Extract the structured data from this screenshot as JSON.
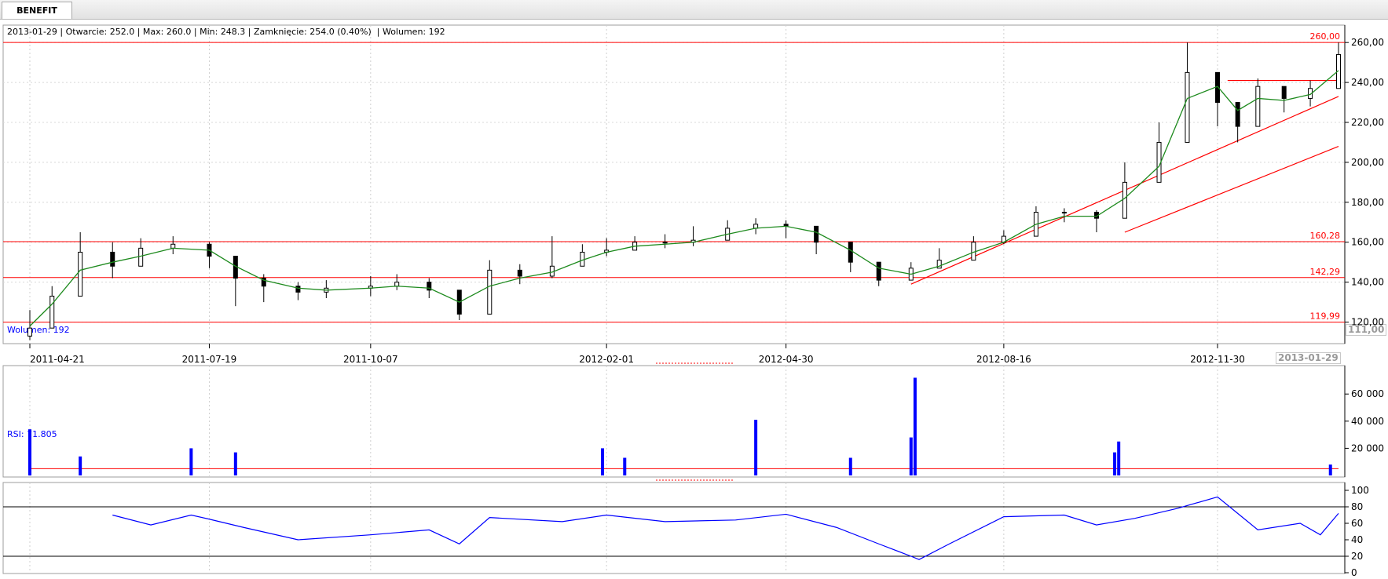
{
  "tab": {
    "label": "BENEFIT"
  },
  "ohlc": {
    "date": "2013-01-29",
    "open_label": "Otwarcie",
    "open": "252.0",
    "max_label": "Max",
    "max": "260.0",
    "min_label": "Min",
    "min": "248.3",
    "close_label": "Zamknięcie",
    "close": "254.0 (0.40%)",
    "volume_label": "Wolumen",
    "volume": "192"
  },
  "volume_pane": {
    "label": "Wolumen: 192"
  },
  "rsi_pane": {
    "label": "RSI: 71.805"
  },
  "price_axis": {
    "last_badge": "111,00"
  },
  "time_axis": {
    "last_badge": "2013-01-29"
  },
  "colors": {
    "candle": "#000000",
    "ma": "#1d8a1d",
    "hline": "#ff0000",
    "volume": "#0000ff",
    "vol_ma": "#ff0000",
    "rsi": "#0000ff"
  },
  "chart_data": [
    {
      "type": "candlestick",
      "title": "BENEFIT",
      "x": [
        "2011-04-21",
        "2011-05-02",
        "2011-05-16",
        "2011-06-01",
        "2011-06-15",
        "2011-07-01",
        "2011-07-19",
        "2011-08-01",
        "2011-08-15",
        "2011-09-01",
        "2011-09-15",
        "2011-10-07",
        "2011-10-20",
        "2011-11-05",
        "2011-11-20",
        "2011-12-05",
        "2011-12-20",
        "2012-01-05",
        "2012-01-20",
        "2012-02-01",
        "2012-02-15",
        "2012-03-01",
        "2012-03-15",
        "2012-04-01",
        "2012-04-15",
        "2012-04-30",
        "2012-05-15",
        "2012-06-01",
        "2012-06-15",
        "2012-07-01",
        "2012-07-15",
        "2012-08-01",
        "2012-08-16",
        "2012-09-01",
        "2012-09-15",
        "2012-10-01",
        "2012-10-15",
        "2012-11-01",
        "2012-11-15",
        "2012-11-30",
        "2012-12-10",
        "2012-12-20",
        "2013-01-02",
        "2013-01-15",
        "2013-01-29"
      ],
      "close": [
        117,
        133,
        155,
        148,
        157,
        159,
        153,
        142,
        138,
        135,
        137,
        138,
        140,
        136,
        124,
        146,
        143,
        148,
        155,
        156,
        160,
        160,
        161,
        167,
        169,
        168,
        160,
        150,
        141,
        147,
        151,
        160,
        163,
        175,
        175,
        172,
        190,
        210,
        245,
        230,
        218,
        238,
        232,
        237,
        254
      ],
      "high": [
        126,
        138,
        165,
        160,
        162,
        163,
        160,
        148,
        144,
        140,
        141,
        143,
        144,
        142,
        129,
        151,
        149,
        163,
        159,
        162,
        163,
        164,
        168,
        171,
        172,
        171,
        163,
        155,
        147,
        150,
        157,
        163,
        166,
        178,
        177,
        176,
        200,
        220,
        260,
        240,
        228,
        242,
        238,
        241,
        260
      ],
      "low": [
        111,
        127,
        141,
        142,
        148,
        154,
        147,
        128,
        130,
        131,
        132,
        133,
        136,
        132,
        121,
        137,
        139,
        142,
        149,
        153,
        156,
        157,
        158,
        162,
        164,
        162,
        154,
        145,
        138,
        141,
        147,
        155,
        159,
        169,
        170,
        165,
        181,
        198,
        226,
        218,
        210,
        228,
        225,
        228,
        248
      ],
      "ma": [
        118,
        129,
        146,
        150,
        153,
        157,
        156,
        148,
        141,
        137,
        136,
        137,
        138,
        137,
        130,
        138,
        142,
        145,
        151,
        155,
        158,
        159,
        160,
        164,
        167,
        168,
        165,
        156,
        147,
        144,
        148,
        155,
        160,
        169,
        173,
        173,
        182,
        198,
        232,
        238,
        226,
        232,
        231,
        234,
        246
      ],
      "horizontal_lines": [
        260.0,
        160.28,
        142.29,
        119.99
      ],
      "horizontal_line_labels": [
        "260,00",
        "160,28",
        "142,29",
        "119,99"
      ],
      "trendlines": [
        {
          "from": [
            "2012-07-01",
            139
          ],
          "to": [
            "2013-01-29",
            233
          ]
        },
        {
          "from": [
            "2012-10-15",
            165
          ],
          "to": [
            "2013-01-29",
            208
          ]
        },
        {
          "from": [
            "2012-12-05",
            241
          ],
          "to": [
            "2013-01-29",
            241
          ]
        }
      ],
      "y_ticks": [
        120,
        140,
        160,
        180,
        200,
        220,
        240,
        260
      ],
      "y_tick_labels": [
        "120,00",
        "140,00",
        "160,00",
        "180,00",
        "200,00",
        "220,00",
        "240,00",
        "260,00"
      ],
      "x_tick_labels": [
        "2011-04-21",
        "2011-07-19",
        "2011-10-07",
        "2012-02-01",
        "2012-04-30",
        "2012-08-16",
        "2012-11-30"
      ],
      "ylim": [
        110,
        264
      ]
    },
    {
      "type": "bar",
      "title": "Wolumen: 192",
      "x": [
        "2011-04-21",
        "2011-05-16",
        "2011-07-10",
        "2011-08-01",
        "2012-01-30",
        "2012-02-10",
        "2012-04-15",
        "2012-06-01",
        "2012-07-01",
        "2012-07-03",
        "2012-10-10",
        "2012-10-12",
        "2013-01-25"
      ],
      "values": [
        34000,
        14000,
        20000,
        17000,
        20000,
        13000,
        41000,
        13000,
        28000,
        72000,
        17000,
        25000,
        8000
      ],
      "vol_ma_level": 5000,
      "y_ticks": [
        20000,
        40000,
        60000
      ],
      "y_tick_labels": [
        "20 000",
        "40 000",
        "60 000"
      ],
      "ylim": [
        0,
        74000
      ]
    },
    {
      "type": "line",
      "title": "RSI: 71.805",
      "x": [
        "2011-06-01",
        "2011-06-20",
        "2011-07-10",
        "2011-07-19",
        "2011-08-05",
        "2011-09-01",
        "2011-10-07",
        "2011-11-05",
        "2011-11-20",
        "2011-12-05",
        "2012-01-10",
        "2012-02-01",
        "2012-03-01",
        "2012-04-05",
        "2012-04-30",
        "2012-05-25",
        "2012-06-15",
        "2012-07-01",
        "2012-07-05",
        "2012-07-20",
        "2012-08-16",
        "2012-09-15",
        "2012-10-01",
        "2012-10-20",
        "2012-11-10",
        "2012-11-30",
        "2012-12-10",
        "2012-12-20",
        "2013-01-10",
        "2013-01-20",
        "2013-01-29"
      ],
      "values": [
        70,
        58,
        70,
        65,
        55,
        40,
        46,
        52,
        35,
        67,
        62,
        70,
        62,
        64,
        71,
        55,
        35,
        20,
        16,
        35,
        68,
        70,
        58,
        66,
        78,
        92,
        72,
        52,
        60,
        46,
        72
      ],
      "reference_lines": [
        20,
        80
      ],
      "y_ticks": [
        0,
        20,
        40,
        60,
        80,
        100
      ],
      "y_tick_labels": [
        "0",
        "20",
        "40",
        "60",
        "80",
        "100"
      ],
      "ylim": [
        0,
        100
      ]
    }
  ]
}
